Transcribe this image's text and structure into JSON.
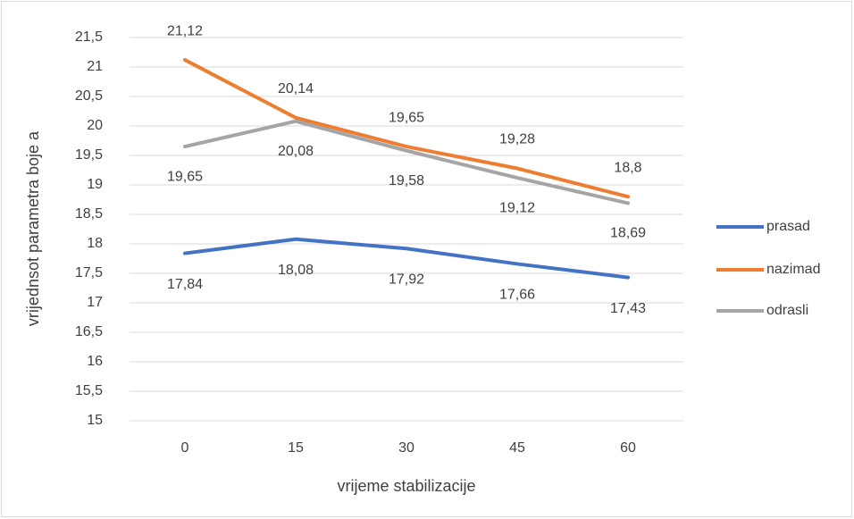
{
  "chart_data": {
    "type": "line",
    "y_label": "vrijednsot parametra boje a",
    "x_label": "vrijeme stabilizacije",
    "categories": [
      "0",
      "15",
      "30",
      "45",
      "60"
    ],
    "series": [
      {
        "name": "prasad",
        "color": "#4472c4",
        "values": [
          17.84,
          18.08,
          17.92,
          17.66,
          17.43
        ],
        "value_labels": [
          "17,84",
          "18,08",
          "17,92",
          "17,66",
          "17,43"
        ]
      },
      {
        "name": "nazimad",
        "color": "#ed7d31",
        "values": [
          21.12,
          20.14,
          19.65,
          19.28,
          18.8
        ],
        "value_labels": [
          "21,12",
          "20,14",
          "19,65",
          "19,28",
          "18,8"
        ]
      },
      {
        "name": "odrasli",
        "color": "#a5a5a5",
        "values": [
          19.65,
          20.08,
          19.58,
          19.12,
          18.69
        ],
        "value_labels": [
          "19,65",
          "20,08",
          "19,58",
          "19,12",
          "18,69"
        ]
      }
    ],
    "ylim": [
      15,
      21.5
    ],
    "yticks": [
      15,
      {
        "value": 15.5,
        "label": "15,5"
      },
      16,
      {
        "value": 16.5,
        "label": "16,5"
      },
      17,
      {
        "value": 17.5,
        "label": "17,5"
      },
      18,
      {
        "value": 18.5,
        "label": "18,5"
      },
      19,
      {
        "value": 19.5,
        "label": "19,5"
      },
      20,
      {
        "value": 20.5,
        "label": "20,5"
      },
      21,
      {
        "value": 21.5,
        "label": "21,5"
      }
    ],
    "grid": true,
    "legend": "right"
  }
}
